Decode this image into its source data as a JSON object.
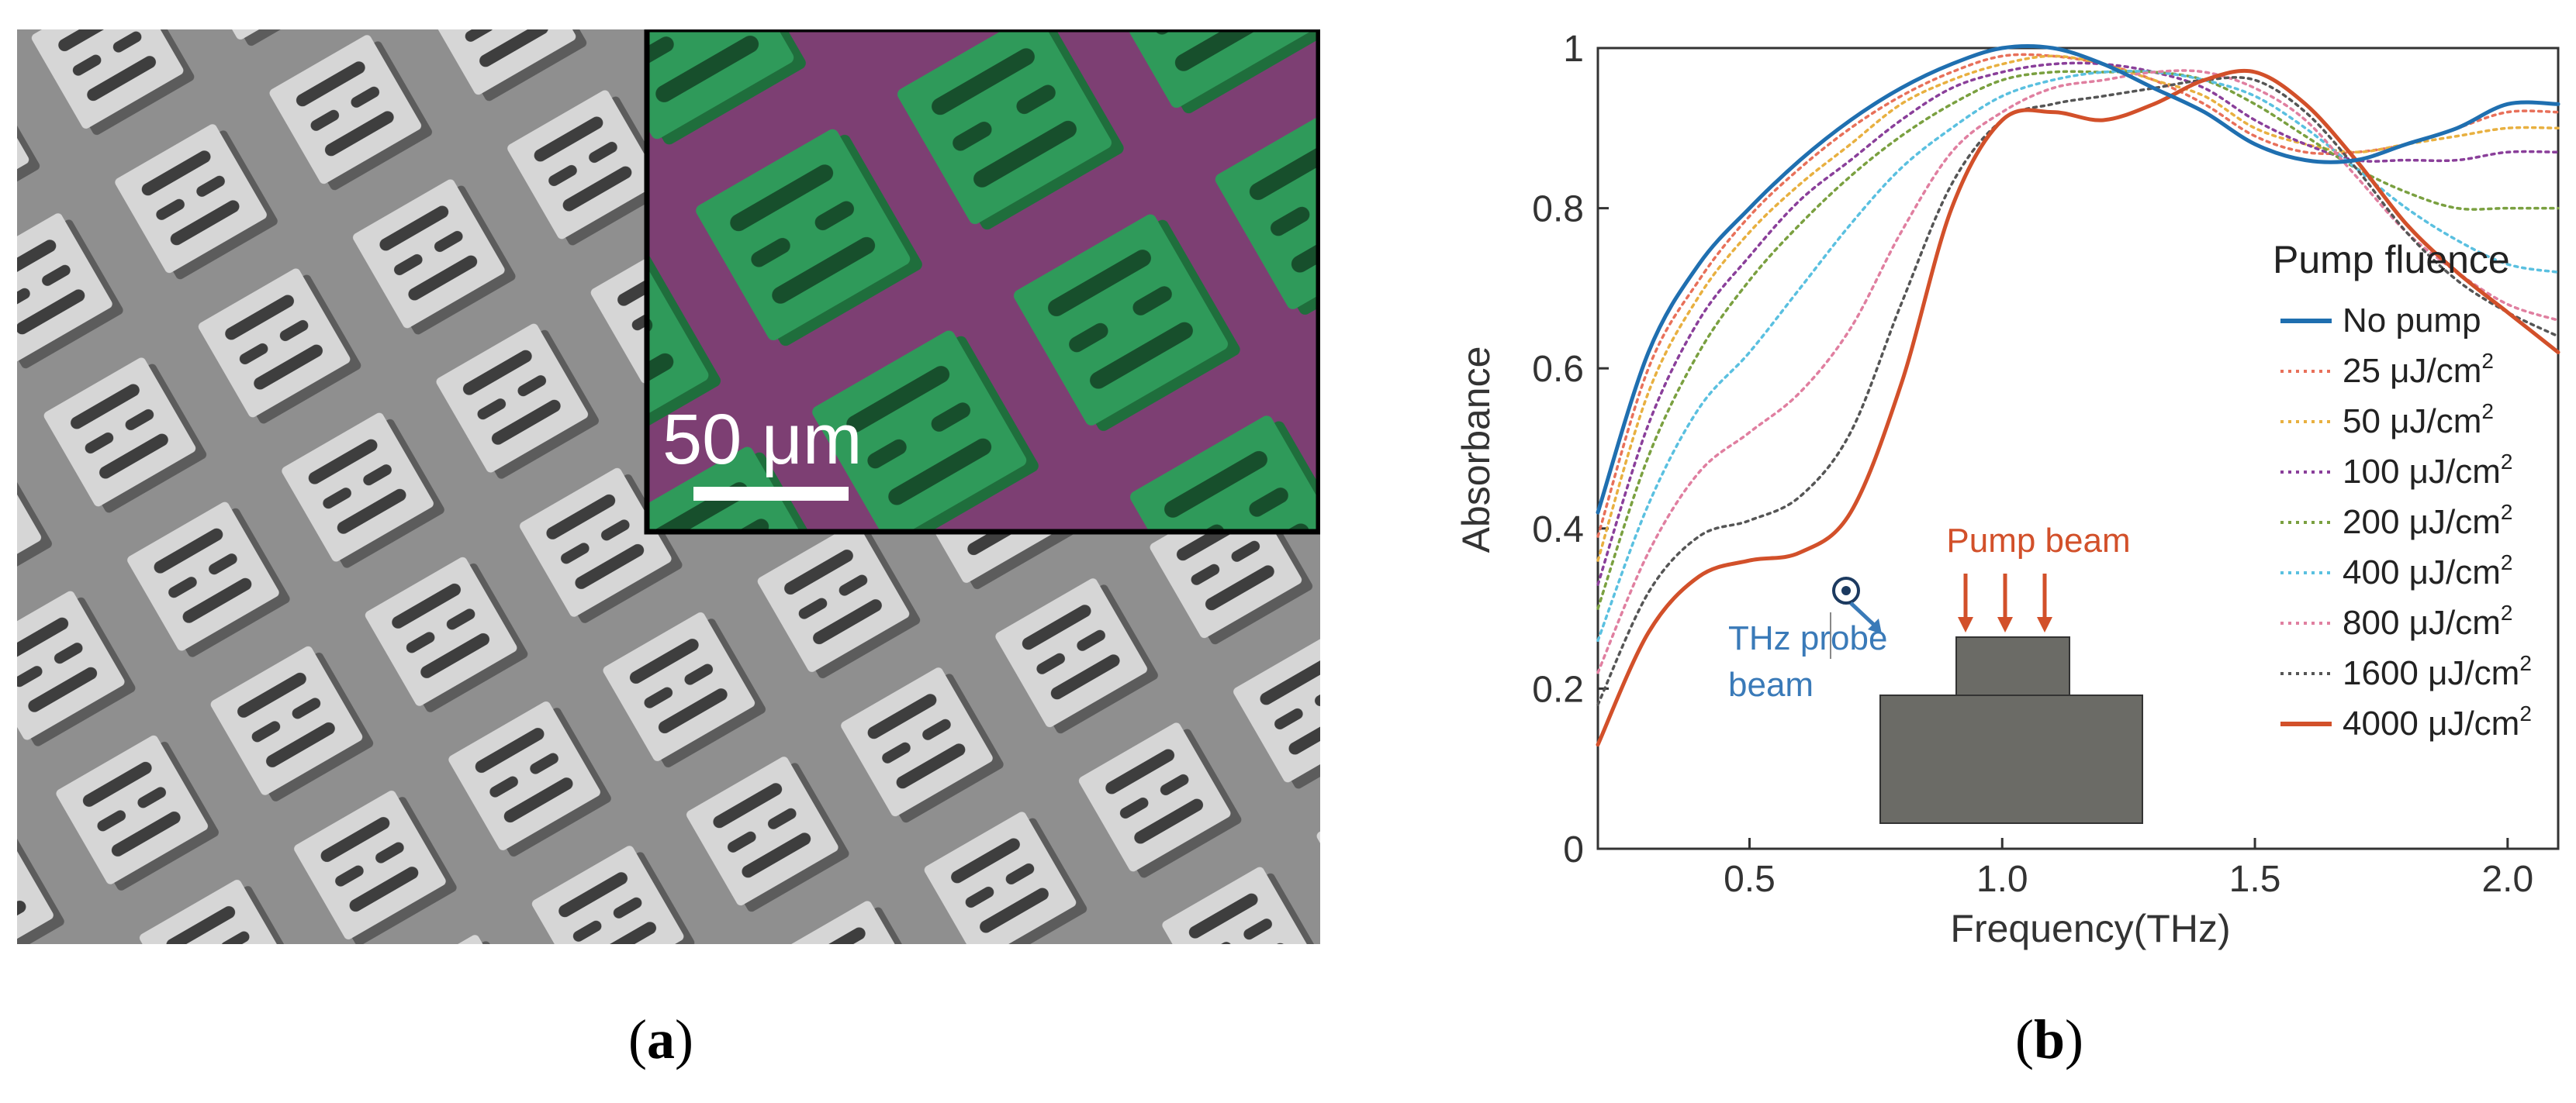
{
  "panel_a": {
    "scale_bar_label": "50 μm",
    "colors": {
      "substrate_gray": "#9c9c9c",
      "block_top": "#d8d8d8",
      "inset_green": "#2f9a5a",
      "inset_purple": "#7d3f73"
    }
  },
  "captions": {
    "a": "a",
    "b": "b"
  },
  "chart_data": {
    "type": "line",
    "title": "",
    "xlabel": "Frequency(THz)",
    "ylabel": "Absorbance",
    "xlim": [
      0.2,
      2.1
    ],
    "ylim": [
      0,
      1
    ],
    "x_ticks": [
      0.5,
      1.0,
      1.5,
      2.0
    ],
    "x_tick_labels": [
      "0.5",
      "1.0",
      "1.5",
      "2.0"
    ],
    "y_ticks": [
      0,
      0.2,
      0.4,
      0.6,
      0.8,
      1
    ],
    "y_tick_labels": [
      "0",
      "0.2",
      "0.4",
      "0.6",
      "0.8",
      "1"
    ],
    "grid": false,
    "legend_title": "Pump fluence",
    "legend_position": "right",
    "x": [
      0.2,
      0.3,
      0.4,
      0.5,
      0.6,
      0.7,
      0.8,
      0.9,
      1.0,
      1.1,
      1.2,
      1.3,
      1.4,
      1.5,
      1.6,
      1.7,
      1.8,
      1.9,
      2.0,
      2.1
    ],
    "series": [
      {
        "name": "No pump",
        "unit": "",
        "color": "#1f6fb0",
        "style": "solid",
        "values": [
          0.42,
          0.62,
          0.73,
          0.8,
          0.86,
          0.91,
          0.95,
          0.98,
          1.0,
          1.0,
          0.98,
          0.95,
          0.92,
          0.88,
          0.86,
          0.86,
          0.88,
          0.9,
          0.93,
          0.93
        ]
      },
      {
        "name": "25 μJ/cm",
        "unit": "2",
        "color": "#e8705a",
        "style": "dotted",
        "values": [
          0.39,
          0.6,
          0.71,
          0.79,
          0.85,
          0.9,
          0.94,
          0.97,
          0.99,
          0.99,
          0.98,
          0.96,
          0.93,
          0.89,
          0.87,
          0.87,
          0.88,
          0.9,
          0.92,
          0.92
        ]
      },
      {
        "name": "50 μJ/cm",
        "unit": "2",
        "color": "#e8b040",
        "style": "dotted",
        "values": [
          0.36,
          0.57,
          0.69,
          0.77,
          0.83,
          0.88,
          0.93,
          0.96,
          0.98,
          0.99,
          0.98,
          0.96,
          0.94,
          0.9,
          0.88,
          0.87,
          0.88,
          0.89,
          0.9,
          0.9
        ]
      },
      {
        "name": "100 μJ/cm",
        "unit": "2",
        "color": "#8a3f9a",
        "style": "dotted",
        "values": [
          0.33,
          0.53,
          0.66,
          0.74,
          0.81,
          0.86,
          0.91,
          0.95,
          0.97,
          0.98,
          0.98,
          0.97,
          0.95,
          0.91,
          0.88,
          0.86,
          0.86,
          0.86,
          0.87,
          0.87
        ]
      },
      {
        "name": "200 μJ/cm",
        "unit": "2",
        "color": "#7aa040",
        "style": "dotted",
        "values": [
          0.3,
          0.49,
          0.62,
          0.71,
          0.78,
          0.84,
          0.89,
          0.93,
          0.96,
          0.97,
          0.97,
          0.97,
          0.96,
          0.93,
          0.89,
          0.85,
          0.82,
          0.8,
          0.8,
          0.8
        ]
      },
      {
        "name": "400 μJ/cm",
        "unit": "2",
        "color": "#5ac0e0",
        "style": "dotted",
        "values": [
          0.26,
          0.43,
          0.55,
          0.62,
          0.7,
          0.78,
          0.85,
          0.9,
          0.94,
          0.96,
          0.97,
          0.97,
          0.96,
          0.94,
          0.9,
          0.85,
          0.8,
          0.76,
          0.73,
          0.72
        ]
      },
      {
        "name": "800 μJ/cm",
        "unit": "2",
        "color": "#e07fa0",
        "style": "dotted",
        "values": [
          0.22,
          0.37,
          0.47,
          0.52,
          0.57,
          0.65,
          0.77,
          0.87,
          0.92,
          0.95,
          0.96,
          0.97,
          0.97,
          0.95,
          0.91,
          0.84,
          0.77,
          0.72,
          0.68,
          0.66
        ]
      },
      {
        "name": "1600 μJ/cm",
        "unit": "2",
        "color": "#555555",
        "style": "dotted",
        "values": [
          0.18,
          0.32,
          0.39,
          0.41,
          0.44,
          0.52,
          0.68,
          0.83,
          0.91,
          0.93,
          0.94,
          0.95,
          0.96,
          0.96,
          0.92,
          0.85,
          0.77,
          0.71,
          0.67,
          0.64
        ]
      },
      {
        "name": "4000 μJ/cm",
        "unit": "2",
        "color": "#d2502a",
        "style": "solid",
        "values": [
          0.13,
          0.27,
          0.34,
          0.36,
          0.37,
          0.42,
          0.58,
          0.8,
          0.91,
          0.92,
          0.91,
          0.93,
          0.96,
          0.97,
          0.93,
          0.86,
          0.78,
          0.72,
          0.67,
          0.62
        ]
      }
    ],
    "annotations": {
      "pump_beam": "Pump beam",
      "thz_probe_line1": "THz probe",
      "thz_probe_line2": "beam",
      "pump_color": "#d2502a",
      "probe_color": "#3a7ab8",
      "sample_color": "#6b6b66"
    }
  }
}
